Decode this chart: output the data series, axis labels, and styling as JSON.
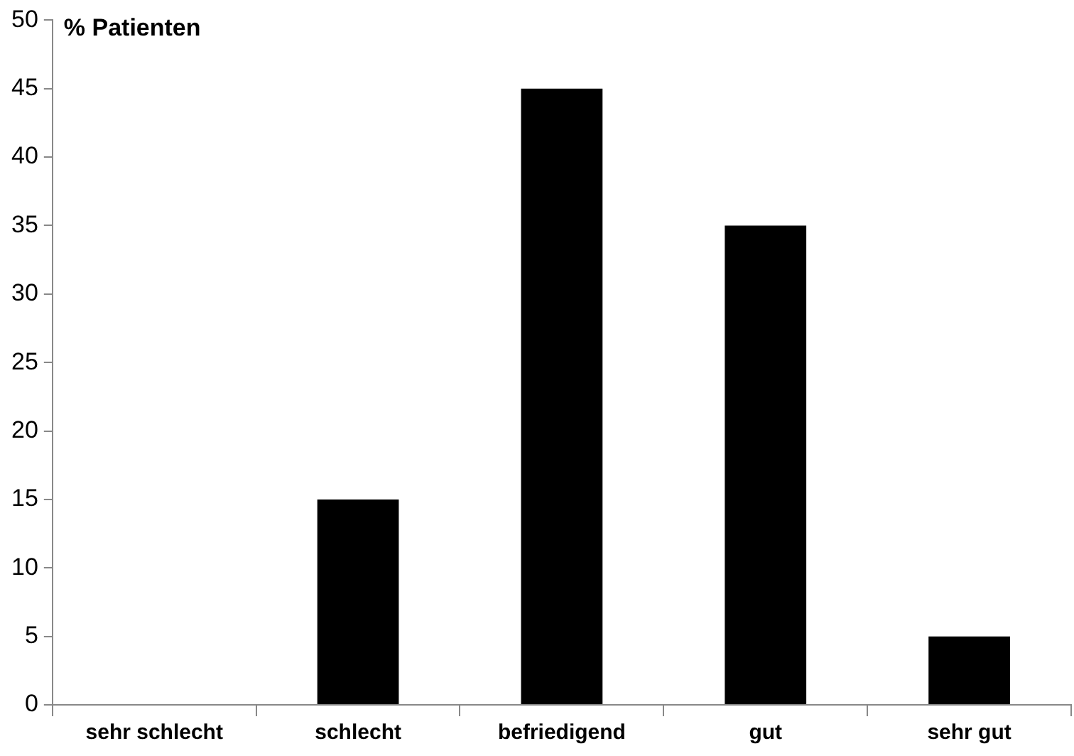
{
  "chart_data": {
    "type": "bar",
    "ylabel": "% Patienten",
    "categories": [
      "sehr schlecht",
      "schlecht",
      "befriedigend",
      "gut",
      "sehr gut"
    ],
    "values": [
      0,
      15,
      45,
      35,
      5
    ],
    "color": "#000000",
    "ylim": [
      0,
      50
    ],
    "yticks": [
      0,
      5,
      10,
      15,
      20,
      25,
      30,
      35,
      40,
      45,
      50
    ],
    "grid": false,
    "legend": false
  }
}
